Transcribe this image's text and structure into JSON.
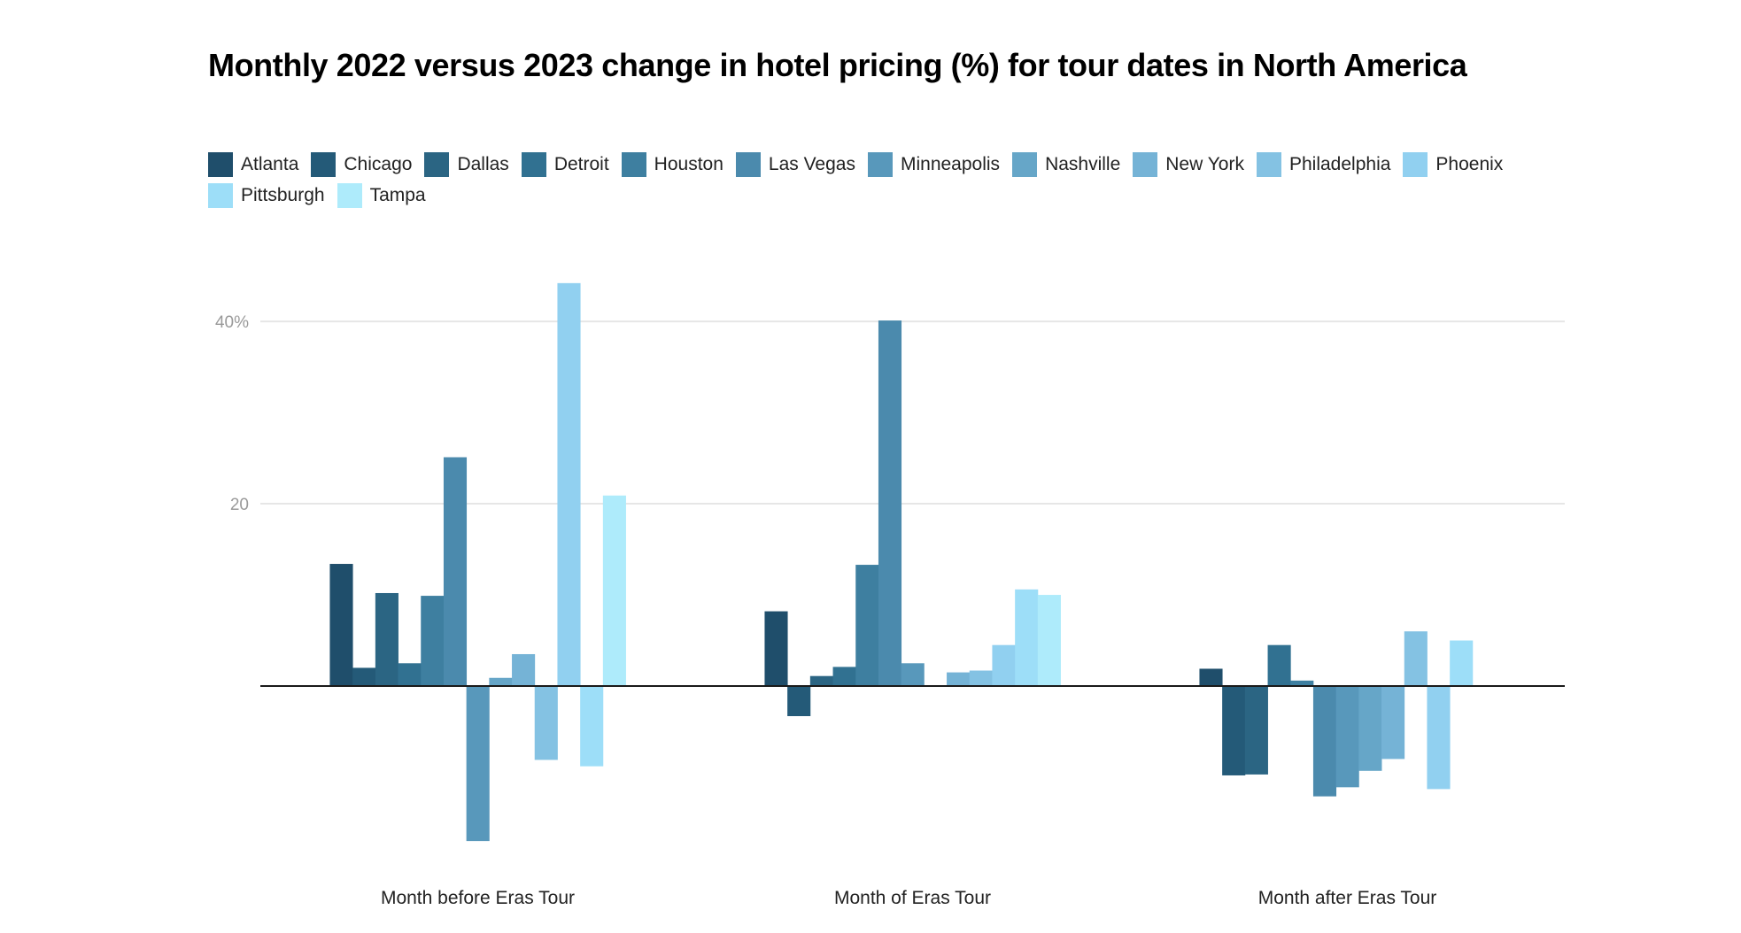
{
  "chart_data": {
    "type": "bar",
    "title": "Monthly 2022 versus 2023 change in hotel pricing (%) for tour dates in North America",
    "xlabel": "",
    "ylabel": "",
    "categories": [
      "Month before Eras Tour",
      "Month of Eras Tour",
      "Month after Eras Tour"
    ],
    "ylim": [
      -20,
      47
    ],
    "yticks": [
      {
        "value": 20,
        "label": "20"
      },
      {
        "value": 40,
        "label": "40%"
      }
    ],
    "grid": true,
    "legend_position": "top-left",
    "series": [
      {
        "name": "Atlanta",
        "color": "#1f4e6b",
        "values": [
          13.4,
          8.2,
          1.9
        ]
      },
      {
        "name": "Chicago",
        "color": "#245a78",
        "values": [
          2.0,
          -3.3,
          -9.8
        ]
      },
      {
        "name": "Dallas",
        "color": "#2b6583",
        "values": [
          10.2,
          1.1,
          -9.7
        ]
      },
      {
        "name": "Detroit",
        "color": "#317191",
        "values": [
          2.5,
          2.1,
          4.5
        ]
      },
      {
        "name": "Houston",
        "color": "#3e7fa0",
        "values": [
          9.9,
          13.3,
          0.6
        ]
      },
      {
        "name": "Las Vegas",
        "color": "#4b8aad",
        "values": [
          25.1,
          40.1,
          -12.1
        ]
      },
      {
        "name": "Minneapolis",
        "color": "#5898bb",
        "values": [
          -17.0,
          2.5,
          -11.1
        ]
      },
      {
        "name": "Nashville",
        "color": "#66a6c8",
        "values": [
          0.9,
          0.1,
          -9.3
        ]
      },
      {
        "name": "New York",
        "color": "#75b3d6",
        "values": [
          3.5,
          1.5,
          -8.0
        ]
      },
      {
        "name": "Philadelphia",
        "color": "#84c2e3",
        "values": [
          -8.1,
          1.7,
          6.0
        ]
      },
      {
        "name": "Phoenix",
        "color": "#91d0f0",
        "values": [
          44.2,
          4.5,
          -11.3
        ]
      },
      {
        "name": "Pittsburgh",
        "color": "#9ddef8",
        "values": [
          -8.8,
          10.6,
          5.0
        ]
      },
      {
        "name": "Tampa",
        "color": "#aeebfb",
        "values": [
          20.9,
          10.0,
          0
        ]
      }
    ]
  }
}
